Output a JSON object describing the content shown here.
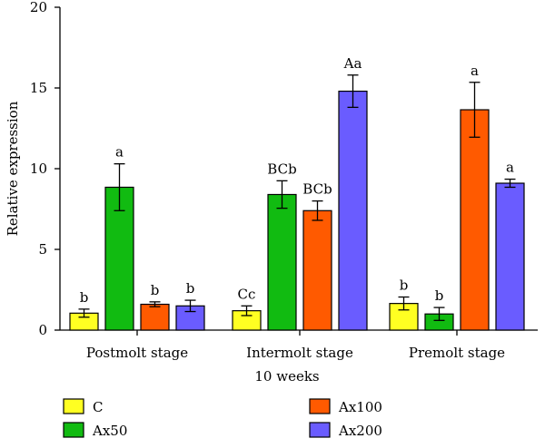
{
  "chart_data": {
    "type": "bar",
    "title": "",
    "xlabel": "10 weeks",
    "ylabel": "Relative expression",
    "ylim": [
      0,
      20
    ],
    "yticks": [
      0,
      5,
      10,
      15,
      20
    ],
    "categories": [
      "Postmolt stage",
      "Intermolt stage",
      "Premolt stage"
    ],
    "grid": false,
    "legend_position": "bottom",
    "series": [
      {
        "name": "C",
        "color": "#ffff22",
        "values": [
          1.05,
          1.2,
          1.65
        ],
        "errors": [
          0.25,
          0.3,
          0.4
        ],
        "labels": [
          "b",
          "Cc",
          "b"
        ]
      },
      {
        "name": "Ax50",
        "color": "#11bb11",
        "values": [
          8.85,
          8.4,
          1.0
        ],
        "errors": [
          1.45,
          0.85,
          0.4
        ],
        "labels": [
          "a",
          "BCb",
          "b"
        ]
      },
      {
        "name": "Ax100",
        "color": "#ff5a00",
        "values": [
          1.6,
          7.4,
          13.65
        ],
        "errors": [
          0.15,
          0.6,
          1.7
        ],
        "labels": [
          "b",
          "BCb",
          "a"
        ]
      },
      {
        "name": "Ax200",
        "color": "#6a5cff",
        "values": [
          1.5,
          14.8,
          9.1
        ],
        "errors": [
          0.35,
          1.0,
          0.25
        ],
        "labels": [
          "b",
          "Aa",
          "a"
        ]
      }
    ]
  }
}
